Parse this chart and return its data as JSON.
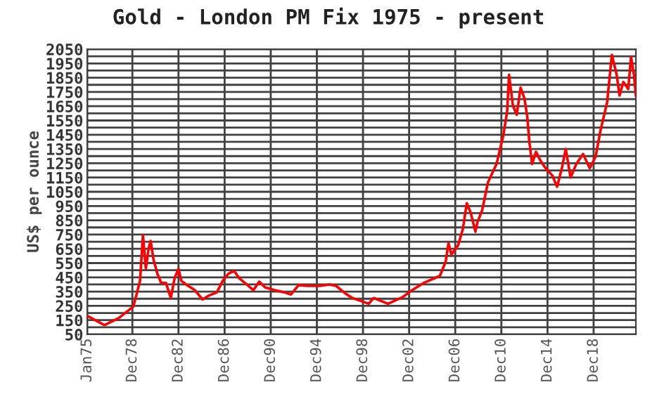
{
  "chart_data": {
    "type": "line",
    "title": "Gold - London PM Fix 1975 - present",
    "ylabel": "US$ per ounce",
    "xlim": [
      "1975-01",
      "2022-08"
    ],
    "xticks": [
      {
        "value": "1975-01",
        "label": "Jan75"
      },
      {
        "value": "1978-12",
        "label": "Dec78"
      },
      {
        "value": "1982-12",
        "label": "Dec82"
      },
      {
        "value": "1986-12",
        "label": "Dec86"
      },
      {
        "value": "1990-12",
        "label": "Dec90"
      },
      {
        "value": "1994-12",
        "label": "Dec94"
      },
      {
        "value": "1998-12",
        "label": "Dec98"
      },
      {
        "value": "2002-12",
        "label": "Dec02"
      },
      {
        "value": "2006-12",
        "label": "Dec06"
      },
      {
        "value": "2010-12",
        "label": "Dec10"
      },
      {
        "value": "2014-12",
        "label": "Dec14"
      },
      {
        "value": "2018-12",
        "label": "Dec18"
      }
    ],
    "ylim": [
      50,
      2050
    ],
    "yticks": [
      50,
      {
        "value": 100,
        "label": null
      },
      150,
      {
        "value": 200,
        "label": null
      },
      250,
      {
        "value": 300,
        "label": null
      },
      350,
      {
        "value": 400,
        "label": null
      },
      450,
      {
        "value": 500,
        "label": null
      },
      550,
      {
        "value": 600,
        "label": null
      },
      650,
      {
        "value": 700,
        "label": null
      },
      750,
      {
        "value": 800,
        "label": null
      },
      850,
      {
        "value": 900,
        "label": null
      },
      950,
      {
        "value": 1000,
        "label": null
      },
      1050,
      {
        "value": 1100,
        "label": null
      },
      1150,
      {
        "value": 1200,
        "label": null
      },
      1250,
      {
        "value": 1300,
        "label": null
      },
      1350,
      {
        "value": 1400,
        "label": null
      },
      1450,
      {
        "value": 1500,
        "label": null
      },
      1550,
      {
        "value": 1600,
        "label": null
      },
      1650,
      {
        "value": 1700,
        "label": null
      },
      1750,
      {
        "value": 1800,
        "label": null
      },
      1850,
      {
        "value": 1900,
        "label": null
      },
      1950,
      {
        "value": 2000,
        "label": null
      },
      2050
    ],
    "grid": true,
    "legend": false,
    "marker": "none",
    "line_style": "solid",
    "series": [
      {
        "color": "#ff0000",
        "x": [
          "1975-01",
          "1976-07",
          "1977-10",
          "1979-01",
          "1979-08",
          "1979-11",
          "1980-02",
          "1980-05",
          "1980-07",
          "1980-10",
          "1981-02",
          "1981-06",
          "1981-11",
          "1982-04",
          "1982-08",
          "1982-12",
          "1983-03",
          "1983-09",
          "1984-05",
          "1985-01",
          "1985-07",
          "1986-04",
          "1986-10",
          "1987-04",
          "1987-10",
          "1988-03",
          "1988-11",
          "1989-06",
          "1989-12",
          "1990-06",
          "1991-04",
          "1992-02",
          "1992-09",
          "1993-05",
          "1994-02",
          "1995-03",
          "1996-01",
          "1996-08",
          "1997-06",
          "1998-01",
          "1999-06",
          "1999-11",
          "2001-02",
          "2002-05",
          "2003-02",
          "2004-03",
          "2005-08",
          "2006-02",
          "2006-05",
          "2006-08",
          "2007-03",
          "2007-08",
          "2007-12",
          "2008-04",
          "2008-09",
          "2008-11",
          "2009-04",
          "2009-10",
          "2010-07",
          "2011-02",
          "2011-06",
          "2011-08",
          "2011-12",
          "2012-04",
          "2012-08",
          "2012-12",
          "2013-03",
          "2013-05",
          "2013-08",
          "2013-12",
          "2014-05",
          "2014-10",
          "2015-05",
          "2015-10",
          "2016-03",
          "2016-07",
          "2016-12",
          "2017-06",
          "2018-01",
          "2018-08",
          "2019-02",
          "2019-07",
          "2020-02",
          "2020-07",
          "2020-12",
          "2021-03",
          "2021-07",
          "2021-12",
          "2022-03",
          "2022-06",
          "2022-08"
        ],
        "values": [
          180,
          115,
          165,
          245,
          425,
          745,
          510,
          655,
          705,
          575,
          475,
          410,
          410,
          305,
          445,
          510,
          425,
          395,
          360,
          295,
          320,
          345,
          425,
          475,
          495,
          445,
          400,
          360,
          420,
          380,
          360,
          345,
          330,
          395,
          390,
          390,
          400,
          390,
          335,
          305,
          265,
          305,
          265,
          310,
          355,
          410,
          460,
          560,
          690,
          610,
          675,
          790,
          970,
          905,
          770,
          835,
          920,
          1115,
          1245,
          1445,
          1610,
          1870,
          1655,
          1590,
          1780,
          1705,
          1575,
          1410,
          1245,
          1330,
          1265,
          1215,
          1165,
          1085,
          1215,
          1350,
          1150,
          1245,
          1315,
          1215,
          1295,
          1475,
          1675,
          2010,
          1870,
          1725,
          1820,
          1770,
          1995,
          1870,
          1725
        ]
      }
    ]
  }
}
